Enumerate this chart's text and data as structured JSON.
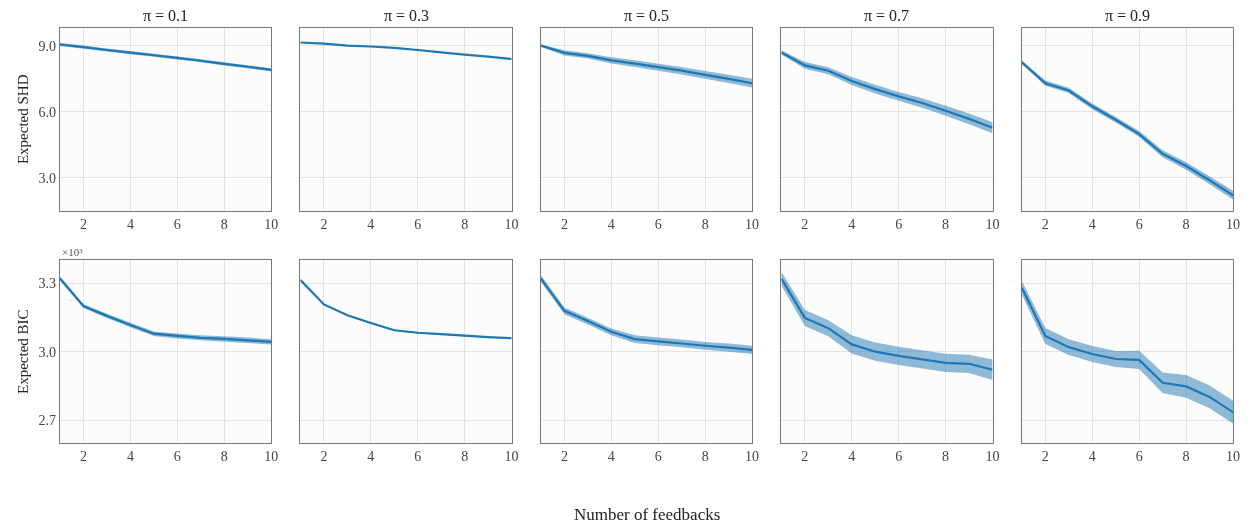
{
  "chart_data": [
    {
      "type": "line",
      "title": "π = 0.1",
      "ylabel": "Expected SHD",
      "x": [
        1,
        2,
        3,
        4,
        5,
        6,
        7,
        8,
        9,
        10
      ],
      "xlim": [
        1,
        10
      ],
      "xticks": [
        2,
        4,
        6,
        8,
        10
      ],
      "ylim": [
        1.5,
        9.8
      ],
      "yticks": [
        {
          "value": 3,
          "label": "3.0"
        },
        {
          "value": 6,
          "label": "6.0"
        },
        {
          "value": 9,
          "label": "9.0"
        }
      ],
      "grid": true,
      "series": [
        {
          "color": "#1f77b4",
          "values": [
            9.05,
            8.93,
            8.8,
            8.68,
            8.56,
            8.44,
            8.31,
            8.17,
            8.04,
            7.9
          ],
          "lower": [
            8.98,
            8.86,
            8.73,
            8.61,
            8.49,
            8.37,
            8.24,
            8.1,
            7.97,
            7.83
          ],
          "upper": [
            9.12,
            9.0,
            8.87,
            8.75,
            8.63,
            8.51,
            8.38,
            8.24,
            8.11,
            7.97
          ]
        }
      ]
    },
    {
      "type": "line",
      "title": "π = 0.3",
      "x": [
        1,
        2,
        3,
        4,
        5,
        6,
        7,
        8,
        9,
        10
      ],
      "xlim": [
        1,
        10
      ],
      "xticks": [
        2,
        4,
        6,
        8,
        10
      ],
      "ylim": [
        1.5,
        9.8
      ],
      "yticks": [
        {
          "value": 3,
          "label": null
        },
        {
          "value": 6,
          "label": null
        },
        {
          "value": 9,
          "label": null
        }
      ],
      "grid": true,
      "tick_labels": "x",
      "series": [
        {
          "color": "#1f77b4",
          "values": [
            9.14,
            9.09,
            9.0,
            8.96,
            8.9,
            8.8,
            8.69,
            8.59,
            8.5,
            8.39
          ],
          "lower": [
            9.12,
            9.07,
            8.98,
            8.94,
            8.88,
            8.78,
            8.67,
            8.57,
            8.48,
            8.37
          ],
          "upper": [
            9.16,
            9.11,
            9.02,
            8.98,
            8.92,
            8.82,
            8.71,
            8.61,
            8.52,
            8.41
          ]
        }
      ]
    },
    {
      "type": "line",
      "title": "π = 0.5",
      "x": [
        1,
        2,
        3,
        4,
        5,
        6,
        7,
        8,
        9,
        10
      ],
      "xlim": [
        1,
        10
      ],
      "xticks": [
        2,
        4,
        6,
        8,
        10
      ],
      "ylim": [
        1.5,
        9.8
      ],
      "yticks": [
        {
          "value": 3,
          "label": null
        },
        {
          "value": 6,
          "label": null
        },
        {
          "value": 9,
          "label": null
        }
      ],
      "grid": true,
      "tick_labels": "x",
      "series": [
        {
          "color": "#1f77b4",
          "values": [
            9.0,
            8.67,
            8.53,
            8.33,
            8.18,
            8.02,
            7.86,
            7.67,
            7.49,
            7.29
          ],
          "lower": [
            8.95,
            8.55,
            8.41,
            8.19,
            8.03,
            7.86,
            7.69,
            7.49,
            7.3,
            7.09
          ],
          "upper": [
            9.05,
            8.79,
            8.65,
            8.47,
            8.33,
            8.18,
            8.03,
            7.85,
            7.68,
            7.49
          ]
        }
      ]
    },
    {
      "type": "line",
      "title": "π = 0.7",
      "x": [
        1,
        2,
        3,
        4,
        5,
        6,
        7,
        8,
        9,
        10
      ],
      "xlim": [
        1,
        10
      ],
      "xticks": [
        2,
        4,
        6,
        8,
        10
      ],
      "ylim": [
        1.5,
        9.8
      ],
      "yticks": [
        {
          "value": 3,
          "label": null
        },
        {
          "value": 6,
          "label": null
        },
        {
          "value": 9,
          "label": null
        }
      ],
      "grid": true,
      "tick_labels": "x",
      "series": [
        {
          "color": "#1f77b4",
          "values": [
            8.69,
            8.1,
            7.86,
            7.39,
            7.02,
            6.69,
            6.39,
            6.04,
            5.67,
            5.27
          ],
          "lower": [
            8.59,
            7.95,
            7.7,
            7.21,
            6.82,
            6.49,
            6.17,
            5.81,
            5.43,
            5.02
          ],
          "upper": [
            8.79,
            8.25,
            8.02,
            7.57,
            7.22,
            6.89,
            6.61,
            6.27,
            5.91,
            5.52
          ]
        }
      ]
    },
    {
      "type": "line",
      "title": "π = 0.9",
      "x": [
        1,
        2,
        3,
        4,
        5,
        6,
        7,
        8,
        9,
        10
      ],
      "xlim": [
        1,
        10
      ],
      "xticks": [
        2,
        4,
        6,
        8,
        10
      ],
      "ylim": [
        1.5,
        9.8
      ],
      "yticks": [
        {
          "value": 3,
          "label": null
        },
        {
          "value": 6,
          "label": null
        },
        {
          "value": 9,
          "label": null
        }
      ],
      "grid": true,
      "tick_labels": "x",
      "series": [
        {
          "color": "#1f77b4",
          "values": [
            8.24,
            7.29,
            6.96,
            6.24,
            5.63,
            4.98,
            4.08,
            3.53,
            2.88,
            2.2
          ],
          "lower": [
            8.16,
            7.17,
            6.84,
            6.11,
            5.5,
            4.84,
            3.92,
            3.36,
            2.7,
            2.0
          ],
          "upper": [
            8.32,
            7.41,
            7.08,
            6.37,
            5.76,
            5.12,
            4.24,
            3.7,
            3.06,
            2.4
          ]
        }
      ]
    },
    {
      "type": "line",
      "ylabel": "Expected BIC",
      "annotations": [
        "×10³"
      ],
      "x": [
        1,
        2,
        3,
        4,
        5,
        6,
        7,
        8,
        9,
        10
      ],
      "xlim": [
        1,
        10
      ],
      "xticks": [
        2,
        4,
        6,
        8,
        10
      ],
      "ylim": [
        2.6,
        3.4
      ],
      "yticks": [
        {
          "value": 2.7,
          "label": "2.7"
        },
        {
          "value": 3,
          "label": "3.0"
        },
        {
          "value": 3.3,
          "label": "3.3"
        }
      ],
      "grid": true,
      "series": [
        {
          "color": "#1f77b4",
          "values": [
            3.321,
            3.2,
            3.157,
            3.117,
            3.079,
            3.069,
            3.061,
            3.056,
            3.05,
            3.043
          ],
          "lower": [
            3.313,
            3.192,
            3.148,
            3.107,
            3.069,
            3.058,
            3.05,
            3.044,
            3.038,
            3.031
          ],
          "upper": [
            3.329,
            3.208,
            3.166,
            3.127,
            3.089,
            3.08,
            3.072,
            3.068,
            3.062,
            3.055
          ]
        }
      ]
    },
    {
      "type": "line",
      "x": [
        1,
        2,
        3,
        4,
        5,
        6,
        7,
        8,
        9,
        10
      ],
      "xlim": [
        1,
        10
      ],
      "xticks": [
        2,
        4,
        6,
        8,
        10
      ],
      "ylim": [
        2.6,
        3.4
      ],
      "yticks": [
        {
          "value": 2.7,
          "label": null
        },
        {
          "value": 3,
          "label": null
        },
        {
          "value": 3.3,
          "label": null
        }
      ],
      "grid": true,
      "tick_labels": "x",
      "series": [
        {
          "color": "#1f77b4",
          "values": [
            3.314,
            3.207,
            3.16,
            3.126,
            3.094,
            3.083,
            3.077,
            3.07,
            3.064,
            3.059
          ],
          "lower": [
            3.311,
            3.204,
            3.157,
            3.123,
            3.091,
            3.08,
            3.074,
            3.067,
            3.061,
            3.056
          ],
          "upper": [
            3.317,
            3.21,
            3.163,
            3.129,
            3.097,
            3.086,
            3.08,
            3.073,
            3.067,
            3.062
          ]
        }
      ]
    },
    {
      "type": "line",
      "xlabel": "Number of feedbacks",
      "x": [
        1,
        2,
        3,
        4,
        5,
        6,
        7,
        8,
        9,
        10
      ],
      "xlim": [
        1,
        10
      ],
      "xticks": [
        2,
        4,
        6,
        8,
        10
      ],
      "ylim": [
        2.6,
        3.4
      ],
      "yticks": [
        {
          "value": 2.7,
          "label": null
        },
        {
          "value": 3,
          "label": null
        },
        {
          "value": 3.3,
          "label": null
        }
      ],
      "grid": true,
      "tick_labels": "x",
      "series": [
        {
          "color": "#1f77b4",
          "values": [
            3.32,
            3.179,
            3.134,
            3.087,
            3.055,
            3.045,
            3.036,
            3.026,
            3.018,
            3.008
          ],
          "lower": [
            3.305,
            3.164,
            3.119,
            3.072,
            3.038,
            3.028,
            3.019,
            3.009,
            3.0,
            2.99
          ],
          "upper": [
            3.335,
            3.194,
            3.149,
            3.102,
            3.072,
            3.062,
            3.053,
            3.043,
            3.036,
            3.026
          ]
        }
      ]
    },
    {
      "type": "line",
      "x": [
        1,
        2,
        3,
        4,
        5,
        6,
        7,
        8,
        9,
        10
      ],
      "xlim": [
        1,
        10
      ],
      "xticks": [
        2,
        4,
        6,
        8,
        10
      ],
      "ylim": [
        2.6,
        3.4
      ],
      "yticks": [
        {
          "value": 2.7,
          "label": null
        },
        {
          "value": 3,
          "label": null
        },
        {
          "value": 3.3,
          "label": null
        }
      ],
      "grid": true,
      "tick_labels": "x",
      "series": [
        {
          "color": "#1f77b4",
          "values": [
            3.32,
            3.148,
            3.103,
            3.032,
            3.0,
            2.982,
            2.966,
            2.951,
            2.947,
            2.921
          ],
          "lower": [
            3.29,
            3.113,
            3.068,
            2.992,
            2.96,
            2.942,
            2.926,
            2.911,
            2.907,
            2.876
          ],
          "upper": [
            3.35,
            3.183,
            3.138,
            3.072,
            3.04,
            3.022,
            3.006,
            2.991,
            2.987,
            2.966
          ]
        }
      ]
    },
    {
      "type": "line",
      "x": [
        1,
        2,
        3,
        4,
        5,
        6,
        7,
        8,
        9,
        10
      ],
      "xlim": [
        1,
        10
      ],
      "xticks": [
        2,
        4,
        6,
        8,
        10
      ],
      "ylim": [
        2.6,
        3.4
      ],
      "yticks": [
        {
          "value": 2.7,
          "label": null
        },
        {
          "value": 3,
          "label": null
        },
        {
          "value": 3.3,
          "label": null
        }
      ],
      "grid": true,
      "tick_labels": "x",
      "series": [
        {
          "color": "#1f77b4",
          "values": [
            3.28,
            3.069,
            3.02,
            2.99,
            2.968,
            2.964,
            2.864,
            2.848,
            2.802,
            2.735
          ],
          "lower": [
            3.25,
            3.034,
            2.985,
            2.955,
            2.933,
            2.924,
            2.819,
            2.798,
            2.752,
            2.685
          ],
          "upper": [
            3.31,
            3.104,
            3.055,
            3.025,
            3.003,
            3.004,
            2.909,
            2.898,
            2.852,
            2.785
          ]
        }
      ]
    }
  ]
}
